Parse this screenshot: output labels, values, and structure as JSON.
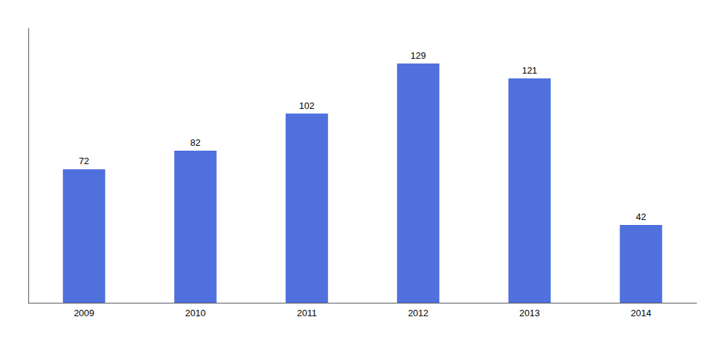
{
  "chart_data": {
    "type": "bar",
    "categories": [
      "2009",
      "2010",
      "2011",
      "2012",
      "2013",
      "2014"
    ],
    "values": [
      72,
      82,
      102,
      129,
      121,
      42
    ],
    "ylim": [
      0,
      148
    ],
    "data_labels": true,
    "tick_labels": "x",
    "grid": false
  }
}
